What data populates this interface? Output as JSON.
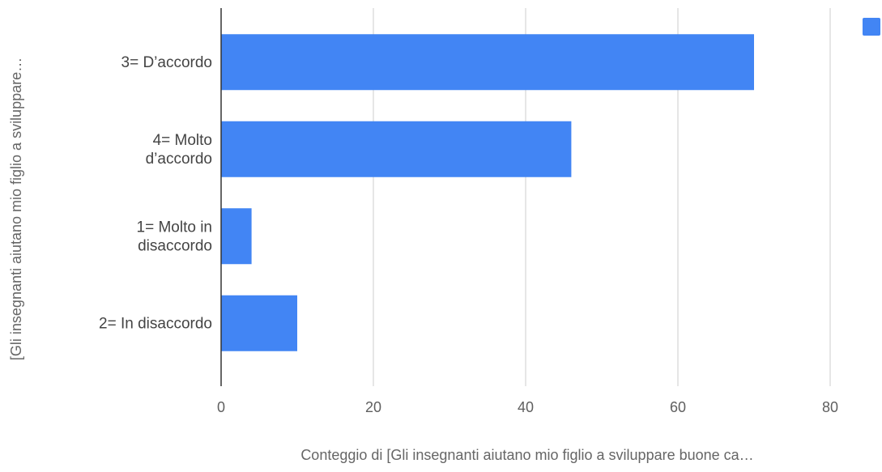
{
  "chart_data": {
    "type": "bar",
    "orientation": "horizontal",
    "categories": [
      "3= D'accordo",
      "4= Molto d'accordo",
      "1= Molto in disaccordo",
      "2= In disaccordo"
    ],
    "category_lines": [
      [
        "3= D’accordo"
      ],
      [
        "4= Molto",
        "d’accordo"
      ],
      [
        "1= Molto in",
        "disaccordo"
      ],
      [
        "2= In disaccordo"
      ]
    ],
    "values": [
      70,
      46,
      4,
      10
    ],
    "xlabel": "Conteggio di  [Gli insegnanti aiutano mio figlio a sviluppare buone ca…",
    "ylabel": "[Gli insegnanti aiutano mio figlio a sviluppare…",
    "xlim": [
      0,
      84
    ],
    "xticks": [
      "0",
      "20",
      "40",
      "60",
      "80"
    ],
    "xtick_values": [
      0,
      20,
      40,
      60,
      80
    ],
    "grid": true,
    "legend": {
      "position": "top-right",
      "label": ""
    },
    "colors": {
      "bar": "#4285f4",
      "grid": "#cccccc",
      "axis": "#333333"
    }
  }
}
